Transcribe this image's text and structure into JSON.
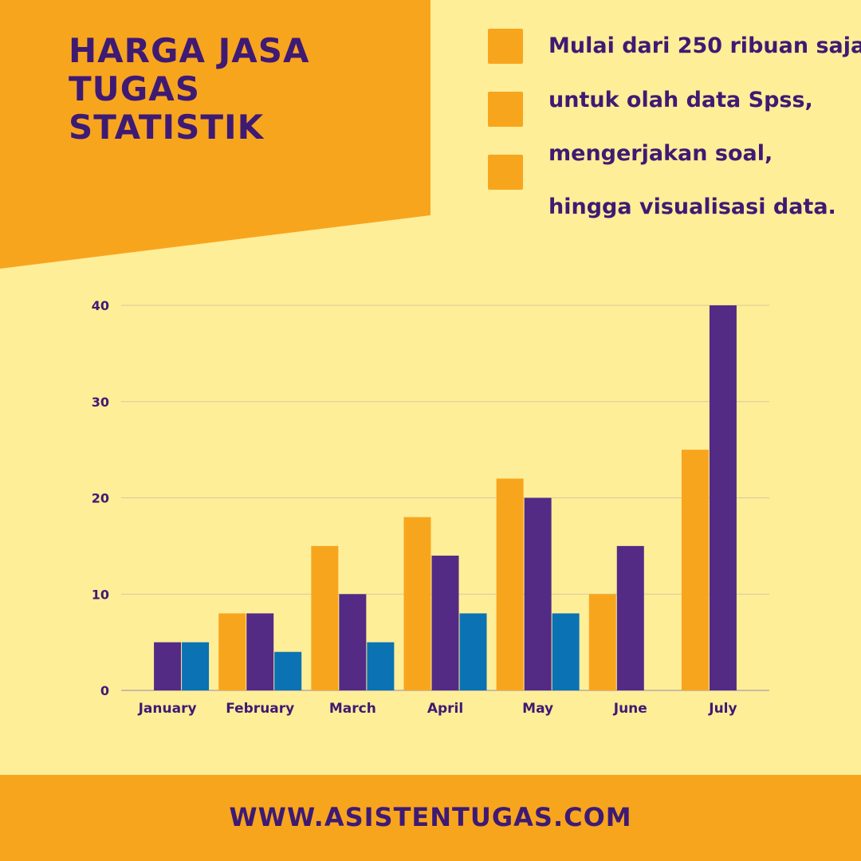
{
  "title_lines": [
    "HARGA JASA",
    "TUGAS",
    "STATISTIK"
  ],
  "legend_swatch_count": 3,
  "bullet_lines": [
    "Mulai dari 250 ribuan saja",
    "untuk olah data Spss,",
    "mengerjakan soal,",
    "hingga visualisasi data."
  ],
  "footer_url": "WWW.ASISTENTUGAS.COM",
  "colors": {
    "background": "#FEEE98",
    "accent": "#F8A51E",
    "text": "#3F1A73",
    "series_1": "#F8A51E",
    "series_2": "#532B85",
    "series_3": "#0B72B4"
  },
  "chart_data": {
    "type": "bar",
    "title": "",
    "xlabel": "",
    "ylabel": "",
    "categories": [
      "January",
      "February",
      "March",
      "April",
      "May",
      "June",
      "July"
    ],
    "ylim": [
      0,
      40
    ],
    "yticks": [
      0,
      10,
      20,
      30,
      40
    ],
    "grid": true,
    "series": [
      {
        "values": [
          0,
          8,
          15,
          18,
          22,
          10,
          25
        ]
      },
      {
        "values": [
          5,
          8,
          10,
          14,
          20,
          15,
          40
        ]
      },
      {
        "values": [
          5,
          4,
          5,
          8,
          8,
          0,
          0
        ]
      }
    ]
  }
}
